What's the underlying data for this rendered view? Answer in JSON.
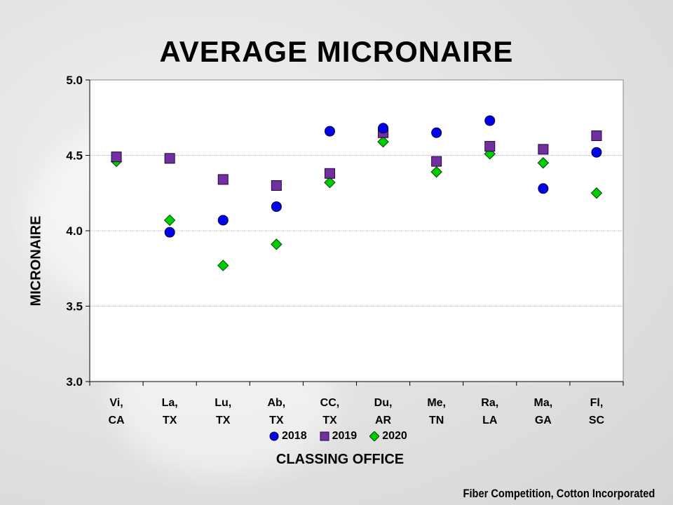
{
  "chart_data": {
    "type": "scatter",
    "title": "AVERAGE MICRONAIRE",
    "xlabel": "CLASSING OFFICE",
    "ylabel": "MICRONAIRE",
    "categories": [
      "Vi, CA",
      "La, TX",
      "Lu, TX",
      "Ab, TX",
      "CC, TX",
      "Du, AR",
      "Me, TN",
      "Ra, LA",
      "Ma, GA",
      "Fl, SC"
    ],
    "category_lines": [
      [
        "Vi,",
        "CA"
      ],
      [
        "La,",
        "TX"
      ],
      [
        "Lu,",
        "TX"
      ],
      [
        "Ab,",
        "TX"
      ],
      [
        "CC,",
        "TX"
      ],
      [
        "Du,",
        "AR"
      ],
      [
        "Me,",
        "TN"
      ],
      [
        "Ra,",
        "LA"
      ],
      [
        "Ma,",
        "GA"
      ],
      [
        "Fl,",
        "SC"
      ]
    ],
    "ylim": [
      3.0,
      5.0
    ],
    "yticks": [
      "3.0",
      "3.5",
      "4.0",
      "4.5",
      "5.0"
    ],
    "ytick_values": [
      3.0,
      3.5,
      4.0,
      4.5,
      5.0
    ],
    "grid": true,
    "series": [
      {
        "name": "2018",
        "marker": "circle",
        "color": "#0000ee",
        "values": [
          null,
          3.99,
          4.07,
          4.16,
          4.66,
          4.68,
          4.65,
          4.73,
          4.28,
          4.52
        ]
      },
      {
        "name": "2019",
        "marker": "square",
        "color": "#7030a0",
        "values": [
          4.49,
          4.48,
          4.34,
          4.3,
          4.38,
          4.65,
          4.46,
          4.56,
          4.54,
          4.63
        ]
      },
      {
        "name": "2020",
        "marker": "diamond",
        "color": "#00cc00",
        "values": [
          4.46,
          4.07,
          3.77,
          3.91,
          4.32,
          4.59,
          4.39,
          4.51,
          4.45,
          4.25
        ]
      }
    ]
  },
  "legend": {
    "items": [
      "2018",
      "2019",
      "2020"
    ]
  },
  "footer": {
    "credit": "Fiber Competition, Cotton Incorporated"
  }
}
